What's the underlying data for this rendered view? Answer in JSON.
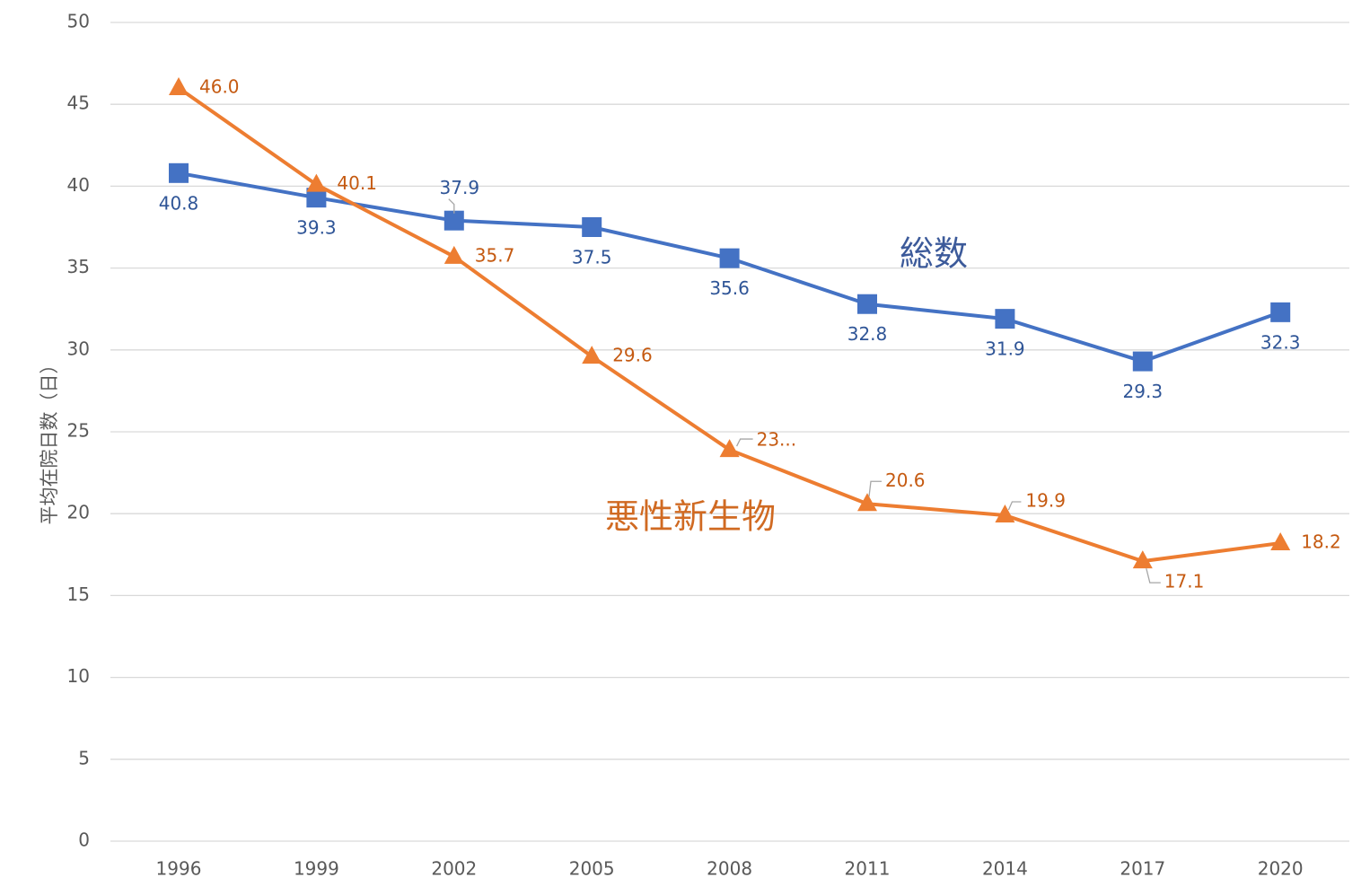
{
  "chart_data": {
    "type": "line",
    "ylabel": "平均在院日数（日）",
    "xlabel": "",
    "ylim": [
      0,
      50
    ],
    "yticks": [
      0,
      5,
      10,
      15,
      20,
      25,
      30,
      35,
      40,
      45,
      50
    ],
    "grid": true,
    "categories": [
      "1996",
      "1999",
      "2002",
      "2005",
      "2008",
      "2011",
      "2014",
      "2017",
      "2020"
    ],
    "series": [
      {
        "name": "総数",
        "color": "#4472c4",
        "marker": "square",
        "values": [
          40.8,
          39.3,
          37.9,
          37.5,
          35.6,
          32.8,
          31.9,
          29.3,
          32.3
        ],
        "labels": [
          "40.8",
          "39.3",
          "37.9",
          "37.5",
          "35.6",
          "32.8",
          "31.9",
          "29.3",
          "32.3"
        ]
      },
      {
        "name": "悪性新生物",
        "color": "#ed7d31",
        "marker": "triangle",
        "values": [
          46.0,
          40.1,
          35.7,
          29.6,
          23.9,
          20.6,
          19.9,
          17.1,
          18.2
        ],
        "labels": [
          "46.0",
          "40.1",
          "35.7",
          "29.6",
          "23...",
          "20.6",
          "19.9",
          "17.1",
          "18.2"
        ]
      }
    ]
  },
  "colors": {
    "label_blue": "#2f5597",
    "label_orange": "#c55a11",
    "series_name_blue": "#3c5a9a",
    "series_name_orange": "#d06a22"
  }
}
